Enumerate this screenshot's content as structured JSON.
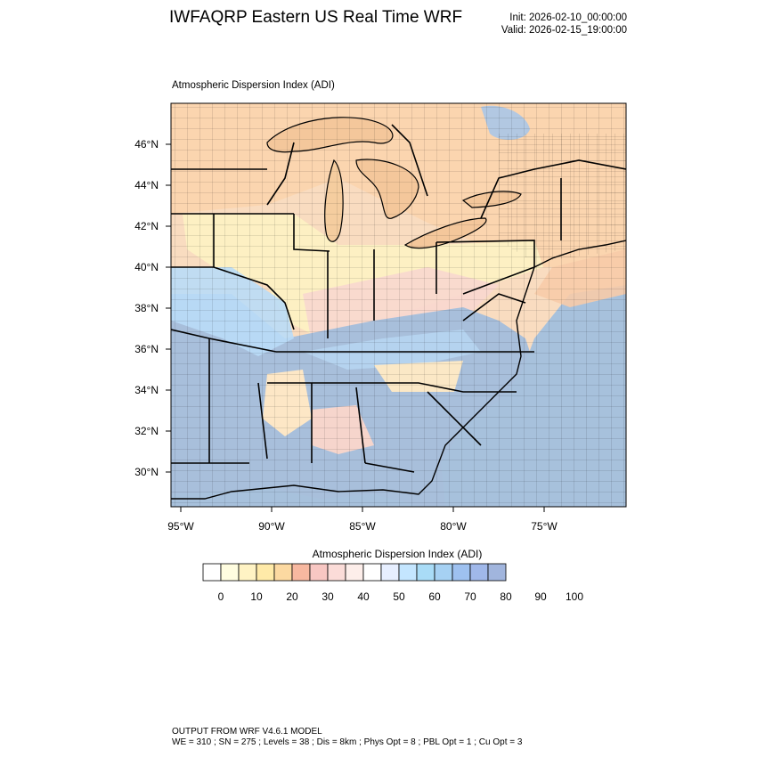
{
  "header": {
    "title": "IWFAQRP Eastern US Real Time WRF",
    "init": "Init: 2026-02-10_00:00:00",
    "valid": "Valid: 2026-02-15_19:00:00"
  },
  "plot": {
    "label": "Atmospheric Dispersion Index   (ADI)",
    "lat_ticks": [
      "46°N",
      "44°N",
      "42°N",
      "40°N",
      "38°N",
      "36°N",
      "34°N",
      "32°N",
      "30°N"
    ],
    "lon_ticks": [
      "95°W",
      "90°W",
      "85°W",
      "80°W",
      "75°W"
    ],
    "colors": {
      "land_low": "#fdf3c2",
      "land_mid": "#f9d3b6",
      "land_high": "#b7d4f0",
      "land_max": "#a3bcd7",
      "ocean": "#a7c1dc",
      "lake": "#f4c79b",
      "border": "#000000"
    }
  },
  "legend": {
    "title": "Atmospheric Dispersion Index  (ADI)",
    "labels": [
      "0",
      "10",
      "20",
      "30",
      "40",
      "50",
      "60",
      "70",
      "80",
      "90",
      "100"
    ],
    "colors": [
      "#ffffff",
      "#fffde0",
      "#fff3c4",
      "#ffeaa8",
      "#fcd9a1",
      "#f7b8a0",
      "#f8c7c3",
      "#fbdcd8",
      "#fdeeea",
      "#ffffff",
      "#e7efff",
      "#c4e6ff",
      "#a9dcf7",
      "#a6d1f3",
      "#9ec1f0",
      "#a0b8ea",
      "#a1b5dd"
    ]
  },
  "footer": {
    "line1": "OUTPUT FROM WRF V4.6.1 MODEL",
    "line2": "WE = 310 ; SN = 275 ; Levels = 38 ; Dis = 8km ; Phys Opt = 8 ; PBL Opt = 1 ; Cu Opt = 3"
  }
}
